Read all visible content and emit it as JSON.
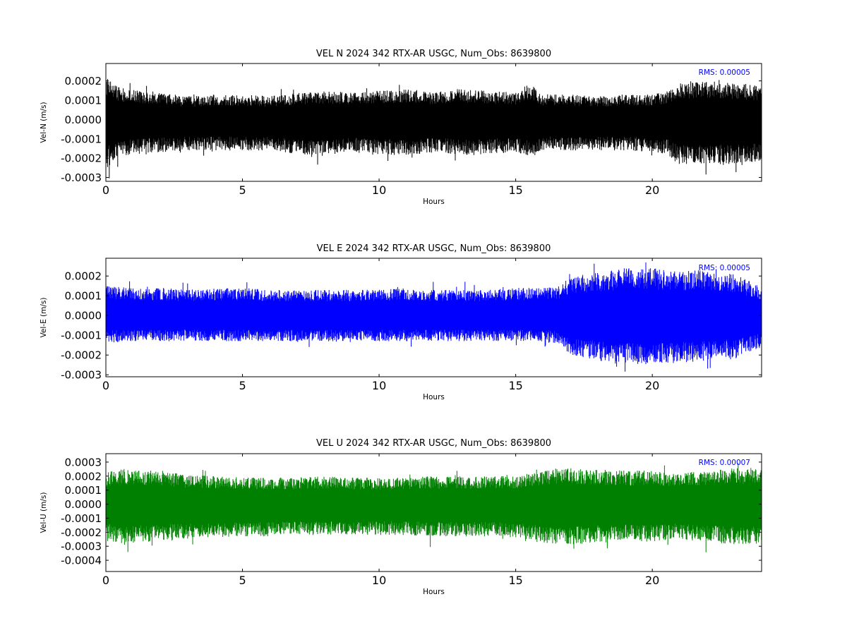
{
  "figure": {
    "background": "#ffffff"
  },
  "chart_data": [
    {
      "type": "line",
      "title": "VEL N 2024 342 RTX-AR  USGC, Num_Obs: 8639800",
      "xlabel": "Hours",
      "ylabel": "Vel-N (m/s)",
      "xlim": [
        0,
        24
      ],
      "ylim": [
        -0.00032,
        0.00029
      ],
      "xticks": [
        0,
        5,
        10,
        15,
        20
      ],
      "xtick_labels": [
        "0",
        "5",
        "10",
        "15",
        "20"
      ],
      "yticks": [
        -0.0003,
        -0.0002,
        -0.0001,
        0.0,
        0.0001,
        0.0002
      ],
      "ytick_labels": [
        "-0.0003",
        "-0.0002",
        "-0.0001",
        "0.0000",
        "0.0001",
        "0.0002"
      ],
      "color": "#000000",
      "grid": false,
      "annotation": "RMS:  0.00005",
      "annotation_color": "#0000ff",
      "envelope": {
        "hours": [
          0,
          0.5,
          1,
          2,
          3,
          4,
          5,
          6,
          7,
          8,
          9,
          10,
          11,
          12,
          13,
          14,
          15,
          15.5,
          16,
          17,
          18,
          19,
          20,
          20.5,
          21,
          22,
          23,
          24
        ],
        "upper": [
          0.00022,
          0.00017,
          0.00016,
          0.00014,
          0.00012,
          0.00013,
          0.00013,
          0.00012,
          0.00014,
          0.00015,
          0.00014,
          0.00015,
          0.00016,
          0.00014,
          0.00016,
          0.00015,
          0.00014,
          0.00019,
          0.00013,
          0.00013,
          0.00012,
          0.00013,
          0.00013,
          0.00015,
          0.00019,
          0.0002,
          0.00019,
          0.00018
        ],
        "lower": [
          -0.00026,
          -0.00019,
          -0.00018,
          -0.00017,
          -0.00016,
          -0.00016,
          -0.00016,
          -0.00016,
          -0.00018,
          -0.00019,
          -0.00017,
          -0.00018,
          -0.00019,
          -0.00017,
          -0.00019,
          -0.00018,
          -0.00017,
          -0.0002,
          -0.00016,
          -0.00016,
          -0.00016,
          -0.00016,
          -0.00017,
          -0.00018,
          -0.00024,
          -0.00023,
          -0.00024,
          -0.00021
        ]
      }
    },
    {
      "type": "line",
      "title": "VEL E 2024 342 RTX-AR  USGC, Num_Obs: 8639800",
      "xlabel": "Hours",
      "ylabel": "Vel-E (m/s)",
      "xlim": [
        0,
        24
      ],
      "ylim": [
        -0.00031,
        0.00029
      ],
      "xticks": [
        0,
        5,
        10,
        15,
        20
      ],
      "xtick_labels": [
        "0",
        "5",
        "10",
        "15",
        "20"
      ],
      "yticks": [
        -0.0003,
        -0.0002,
        -0.0001,
        0.0,
        0.0001,
        0.0002
      ],
      "ytick_labels": [
        "-0.0003",
        "-0.0002",
        "-0.0001",
        "0.0000",
        "0.0001",
        "0.0002"
      ],
      "color": "#0000ff",
      "grid": false,
      "annotation": "RMS:  0.00005",
      "annotation_color": "#0000ff",
      "envelope": {
        "hours": [
          0,
          1,
          2,
          3,
          4,
          5,
          6,
          7,
          8,
          9,
          10,
          11,
          12,
          13,
          14,
          15,
          16,
          16.5,
          17,
          18,
          19,
          20,
          21,
          22,
          22.5,
          23,
          23.5,
          24
        ],
        "upper": [
          0.00015,
          0.00014,
          0.00014,
          0.00013,
          0.00014,
          0.00014,
          0.00013,
          0.00013,
          0.00013,
          0.00013,
          0.00013,
          0.00014,
          0.00013,
          0.00013,
          0.00013,
          0.00014,
          0.00014,
          0.00015,
          0.00019,
          0.00022,
          0.00024,
          0.00024,
          0.00023,
          0.00023,
          0.0002,
          0.00022,
          0.00018,
          0.00014
        ],
        "lower": [
          -0.00014,
          -0.00013,
          -0.00013,
          -0.00013,
          -0.00013,
          -0.00013,
          -0.00013,
          -0.00013,
          -0.00013,
          -0.00013,
          -0.00013,
          -0.00013,
          -0.00013,
          -0.00013,
          -0.00013,
          -0.00013,
          -0.00013,
          -0.00014,
          -0.0002,
          -0.00023,
          -0.00025,
          -0.00025,
          -0.00024,
          -0.00023,
          -0.0002,
          -0.00023,
          -0.00019,
          -0.00016
        ]
      }
    },
    {
      "type": "line",
      "title": "VEL U 2024 342 RTX-AR  USGC, Num_Obs: 8639800",
      "xlabel": "Hours",
      "ylabel": "Vel-U (m/s)",
      "xlim": [
        0,
        24
      ],
      "ylim": [
        -0.00048,
        0.00036
      ],
      "xticks": [
        0,
        5,
        10,
        15,
        20
      ],
      "xtick_labels": [
        "0",
        "5",
        "10",
        "15",
        "20"
      ],
      "yticks": [
        -0.0004,
        -0.0003,
        -0.0002,
        -0.0001,
        0.0,
        0.0001,
        0.0002,
        0.0003
      ],
      "ytick_labels": [
        "-0.0004",
        "-0.0003",
        "-0.0002",
        "-0.0001",
        "0.0000",
        "0.0001",
        "0.0002",
        "0.0003"
      ],
      "color": "#008000",
      "grid": false,
      "annotation": "RMS:  0.00007",
      "annotation_color": "#0000ff",
      "envelope": {
        "hours": [
          0,
          0.5,
          1,
          2,
          3,
          4,
          5,
          6,
          7,
          8,
          9,
          10,
          11,
          12,
          13,
          14,
          15,
          15.5,
          16,
          17,
          18,
          19,
          20,
          21,
          22,
          23,
          24
        ],
        "upper": [
          0.00022,
          0.00026,
          0.00024,
          0.00024,
          0.00021,
          0.0002,
          0.00019,
          0.00019,
          0.00019,
          0.0002,
          0.00019,
          0.00019,
          0.00019,
          0.0002,
          0.0002,
          0.0002,
          0.0002,
          0.00022,
          0.00025,
          0.00026,
          0.00025,
          0.00024,
          0.00024,
          0.00022,
          0.00024,
          0.00026,
          0.00025
        ],
        "lower": [
          -0.00024,
          -0.0003,
          -0.00028,
          -0.00026,
          -0.00025,
          -0.00024,
          -0.00023,
          -0.00023,
          -0.00022,
          -0.00022,
          -0.00022,
          -0.00022,
          -0.00022,
          -0.00023,
          -0.00023,
          -0.00023,
          -0.00024,
          -0.00026,
          -0.00028,
          -0.00029,
          -0.00027,
          -0.00026,
          -0.00027,
          -0.00025,
          -0.00027,
          -0.00029,
          -0.00028
        ]
      }
    }
  ]
}
